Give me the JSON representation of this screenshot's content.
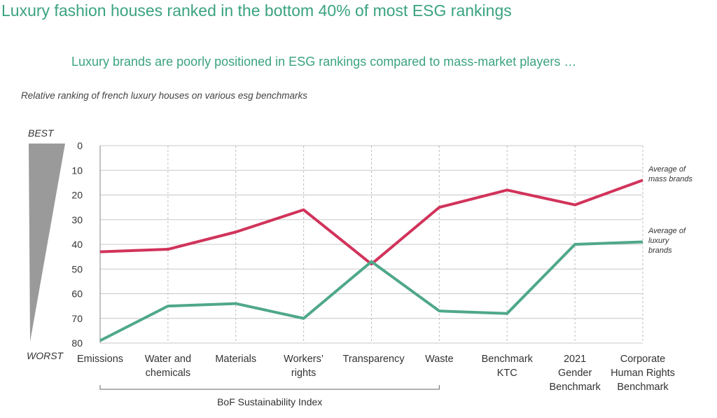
{
  "chart_data": {
    "type": "line",
    "title": "Luxury fashion houses ranked in the bottom 40% of most ESG rankings",
    "subtitle": "Luxury brands are poorly positioned in ESG rankings compared to mass-market players …",
    "caption": "Relative ranking of french luxury houses on various esg benchmarks",
    "y_top_label": "BEST",
    "y_bottom_label": "WORST",
    "group_label": "BoF Sustainability Index",
    "categories": [
      "Emissions",
      "Water and chemicals",
      "Materials",
      "Workers’ rights",
      "Transparency",
      "Waste",
      "Benchmark KTC",
      "2021 Gender Benchmark",
      "Corporate Human Rights Benchmark"
    ],
    "series": [
      {
        "name": "Average of mass brands",
        "color": "#d1335b",
        "values": [
          43,
          42,
          35,
          26,
          48,
          25,
          18,
          24,
          14
        ]
      },
      {
        "name": "Average of luxury brands",
        "color": "#4fa88a",
        "values": [
          79,
          65,
          64,
          70,
          47,
          67,
          68,
          40,
          39
        ]
      }
    ],
    "ylim": [
      0,
      80
    ],
    "yticks": [
      0,
      10,
      20,
      30,
      40,
      50,
      60,
      70,
      80
    ],
    "y_inverted": true,
    "grid": true
  }
}
